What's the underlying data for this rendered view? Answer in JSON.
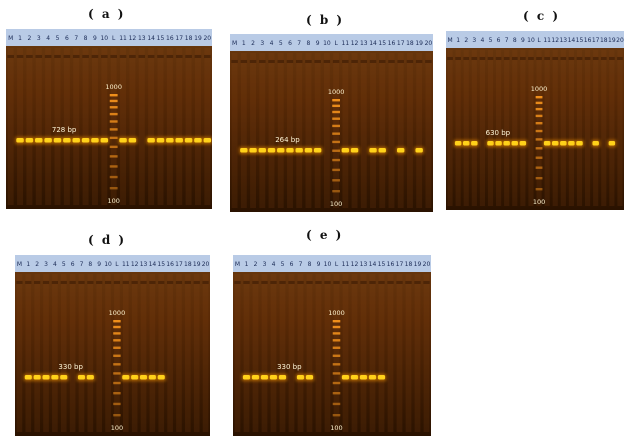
{
  "figure": {
    "panels": [
      {
        "label": "( a )",
        "lane_numbers": [
          "M",
          "1",
          "2",
          "3",
          "4",
          "5",
          "6",
          "7",
          "8",
          "9",
          "10",
          "L",
          "11",
          "12",
          "13",
          "14",
          "15",
          "16",
          "17",
          "18",
          "19",
          "20"
        ],
        "band_label": "728 bp",
        "ladder_top": "1000",
        "ladder_bottom": "100",
        "lanes_with_band": [
          1,
          2,
          3,
          4,
          5,
          6,
          7,
          8,
          9,
          10,
          12,
          13,
          15,
          16,
          17,
          18,
          19,
          20,
          21
        ]
      },
      {
        "label": "( b )",
        "lane_numbers": [
          "M",
          "1",
          "2",
          "3",
          "4",
          "5",
          "6",
          "7",
          "8",
          "9",
          "10",
          "L",
          "11",
          "12",
          "13",
          "14",
          "15",
          "16",
          "17",
          "18",
          "19",
          "20"
        ],
        "band_label": "264 bp",
        "ladder_top": "1000",
        "ladder_bottom": "100",
        "lanes_with_band": [
          1,
          2,
          3,
          4,
          5,
          6,
          7,
          8,
          9,
          12,
          13,
          15,
          16,
          18,
          20
        ]
      },
      {
        "label": "( c )",
        "lane_numbers": [
          "M",
          "1",
          "2",
          "3",
          "4",
          "5",
          "6",
          "7",
          "8",
          "9",
          "10",
          "L",
          "11",
          "12",
          "13",
          "14",
          "15",
          "16",
          "17",
          "18",
          "19",
          "20"
        ],
        "band_label": "630 bp",
        "ladder_top": "1000",
        "ladder_bottom": "100",
        "lanes_with_band": [
          1,
          2,
          3,
          5,
          6,
          7,
          8,
          9,
          12,
          13,
          14,
          15,
          16,
          18,
          20
        ]
      },
      {
        "label": "( d )",
        "lane_numbers": [
          "M",
          "1",
          "2",
          "3",
          "4",
          "5",
          "6",
          "7",
          "8",
          "9",
          "10",
          "L",
          "11",
          "12",
          "13",
          "14",
          "15",
          "16",
          "17",
          "18",
          "19",
          "20"
        ],
        "band_label": "330 bp",
        "ladder_top": "1000",
        "ladder_bottom": "100",
        "lanes_with_band": [
          1,
          2,
          3,
          4,
          5,
          7,
          8,
          12,
          13,
          14,
          15,
          16
        ]
      },
      {
        "label": "( e )",
        "lane_numbers": [
          "M",
          "1",
          "2",
          "3",
          "4",
          "5",
          "6",
          "7",
          "8",
          "9",
          "10",
          "L",
          "11",
          "12",
          "13",
          "14",
          "15",
          "16",
          "17",
          "18",
          "19",
          "20"
        ],
        "band_label": "330 bp",
        "ladder_top": "1000",
        "ladder_bottom": "100",
        "lanes_with_band": [
          1,
          2,
          3,
          4,
          5,
          7,
          8,
          12,
          13,
          14,
          15,
          16
        ]
      }
    ],
    "colors": {
      "gel_dark": "#2a1200",
      "gel_mid": "#5a2a06",
      "band": "#ffd21a",
      "band_glow": "#ff9a00",
      "header": "#b9cbe6"
    }
  }
}
